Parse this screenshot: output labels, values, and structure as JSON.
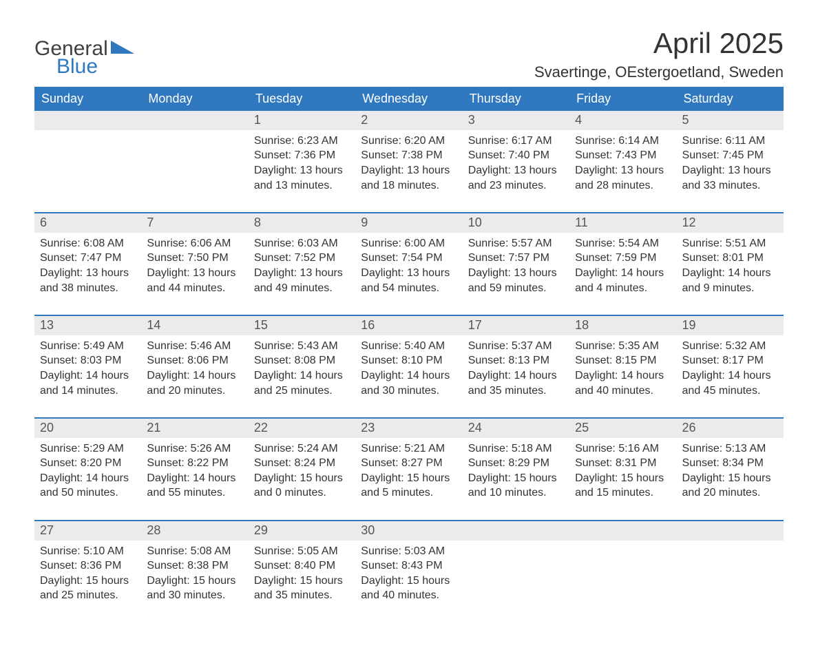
{
  "brand": {
    "word1": "General",
    "word2": "Blue",
    "accent_color": "#2f78bf",
    "text_color": "#404040"
  },
  "title": "April 2025",
  "location": "Svaertinge, OEstergoetland, Sweden",
  "header_bg": "#2f78bf",
  "header_fg": "#ffffff",
  "daynum_bg": "#ebebeb",
  "row_border": "#2f78bf",
  "days_of_week": [
    "Sunday",
    "Monday",
    "Tuesday",
    "Wednesday",
    "Thursday",
    "Friday",
    "Saturday"
  ],
  "weeks": [
    [
      null,
      null,
      {
        "n": "1",
        "sr": "6:23 AM",
        "ss": "7:36 PM",
        "dl": "13 hours and 13 minutes."
      },
      {
        "n": "2",
        "sr": "6:20 AM",
        "ss": "7:38 PM",
        "dl": "13 hours and 18 minutes."
      },
      {
        "n": "3",
        "sr": "6:17 AM",
        "ss": "7:40 PM",
        "dl": "13 hours and 23 minutes."
      },
      {
        "n": "4",
        "sr": "6:14 AM",
        "ss": "7:43 PM",
        "dl": "13 hours and 28 minutes."
      },
      {
        "n": "5",
        "sr": "6:11 AM",
        "ss": "7:45 PM",
        "dl": "13 hours and 33 minutes."
      }
    ],
    [
      {
        "n": "6",
        "sr": "6:08 AM",
        "ss": "7:47 PM",
        "dl": "13 hours and 38 minutes."
      },
      {
        "n": "7",
        "sr": "6:06 AM",
        "ss": "7:50 PM",
        "dl": "13 hours and 44 minutes."
      },
      {
        "n": "8",
        "sr": "6:03 AM",
        "ss": "7:52 PM",
        "dl": "13 hours and 49 minutes."
      },
      {
        "n": "9",
        "sr": "6:00 AM",
        "ss": "7:54 PM",
        "dl": "13 hours and 54 minutes."
      },
      {
        "n": "10",
        "sr": "5:57 AM",
        "ss": "7:57 PM",
        "dl": "13 hours and 59 minutes."
      },
      {
        "n": "11",
        "sr": "5:54 AM",
        "ss": "7:59 PM",
        "dl": "14 hours and 4 minutes."
      },
      {
        "n": "12",
        "sr": "5:51 AM",
        "ss": "8:01 PM",
        "dl": "14 hours and 9 minutes."
      }
    ],
    [
      {
        "n": "13",
        "sr": "5:49 AM",
        "ss": "8:03 PM",
        "dl": "14 hours and 14 minutes."
      },
      {
        "n": "14",
        "sr": "5:46 AM",
        "ss": "8:06 PM",
        "dl": "14 hours and 20 minutes."
      },
      {
        "n": "15",
        "sr": "5:43 AM",
        "ss": "8:08 PM",
        "dl": "14 hours and 25 minutes."
      },
      {
        "n": "16",
        "sr": "5:40 AM",
        "ss": "8:10 PM",
        "dl": "14 hours and 30 minutes."
      },
      {
        "n": "17",
        "sr": "5:37 AM",
        "ss": "8:13 PM",
        "dl": "14 hours and 35 minutes."
      },
      {
        "n": "18",
        "sr": "5:35 AM",
        "ss": "8:15 PM",
        "dl": "14 hours and 40 minutes."
      },
      {
        "n": "19",
        "sr": "5:32 AM",
        "ss": "8:17 PM",
        "dl": "14 hours and 45 minutes."
      }
    ],
    [
      {
        "n": "20",
        "sr": "5:29 AM",
        "ss": "8:20 PM",
        "dl": "14 hours and 50 minutes."
      },
      {
        "n": "21",
        "sr": "5:26 AM",
        "ss": "8:22 PM",
        "dl": "14 hours and 55 minutes."
      },
      {
        "n": "22",
        "sr": "5:24 AM",
        "ss": "8:24 PM",
        "dl": "15 hours and 0 minutes."
      },
      {
        "n": "23",
        "sr": "5:21 AM",
        "ss": "8:27 PM",
        "dl": "15 hours and 5 minutes."
      },
      {
        "n": "24",
        "sr": "5:18 AM",
        "ss": "8:29 PM",
        "dl": "15 hours and 10 minutes."
      },
      {
        "n": "25",
        "sr": "5:16 AM",
        "ss": "8:31 PM",
        "dl": "15 hours and 15 minutes."
      },
      {
        "n": "26",
        "sr": "5:13 AM",
        "ss": "8:34 PM",
        "dl": "15 hours and 20 minutes."
      }
    ],
    [
      {
        "n": "27",
        "sr": "5:10 AM",
        "ss": "8:36 PM",
        "dl": "15 hours and 25 minutes."
      },
      {
        "n": "28",
        "sr": "5:08 AM",
        "ss": "8:38 PM",
        "dl": "15 hours and 30 minutes."
      },
      {
        "n": "29",
        "sr": "5:05 AM",
        "ss": "8:40 PM",
        "dl": "15 hours and 35 minutes."
      },
      {
        "n": "30",
        "sr": "5:03 AM",
        "ss": "8:43 PM",
        "dl": "15 hours and 40 minutes."
      },
      null,
      null,
      null
    ]
  ],
  "labels": {
    "sunrise": "Sunrise: ",
    "sunset": "Sunset: ",
    "daylight": "Daylight: "
  }
}
